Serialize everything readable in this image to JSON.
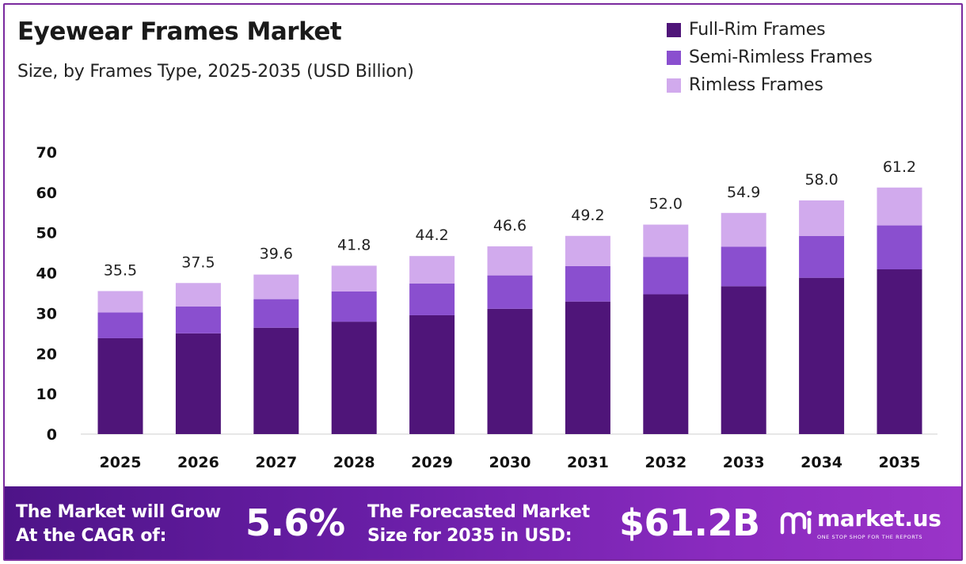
{
  "title": "Eyewear Frames Market",
  "subtitle": "Size, by Frames Type, 2025-2035 (USD Billion)",
  "colors": {
    "full_rim": "#4f1579",
    "semi_rimless": "#8a4fcf",
    "rimless": "#d1aaed",
    "accent": "#7a2a9e"
  },
  "chart_data": {
    "type": "bar",
    "stacked": true,
    "categories": [
      "2025",
      "2026",
      "2027",
      "2028",
      "2029",
      "2030",
      "2031",
      "2032",
      "2033",
      "2034",
      "2035"
    ],
    "series": [
      {
        "name": "Full-Rim Frames",
        "values": [
          23.8,
          25.0,
          26.4,
          27.9,
          29.5,
          31.1,
          32.9,
          34.7,
          36.7,
          38.8,
          40.9
        ]
      },
      {
        "name": "Semi-Rimless Frames",
        "values": [
          6.4,
          6.7,
          7.1,
          7.5,
          7.9,
          8.3,
          8.8,
          9.3,
          9.8,
          10.4,
          10.9
        ]
      },
      {
        "name": "Rimless Frames",
        "values": [
          5.3,
          5.8,
          6.1,
          6.4,
          6.8,
          7.2,
          7.5,
          8.0,
          8.4,
          8.8,
          9.4
        ]
      }
    ],
    "totals": [
      "35.5",
      "37.5",
      "39.6",
      "41.8",
      "44.2",
      "46.6",
      "49.2",
      "52.0",
      "54.9",
      "58.0",
      "61.2"
    ],
    "yticks": [
      "0",
      "10",
      "20",
      "30",
      "40",
      "50",
      "60",
      "70"
    ],
    "ylim": [
      0,
      70
    ],
    "grid": false,
    "legend_position": "top-right"
  },
  "footer": {
    "cagr_text_line1": "The Market will Grow",
    "cagr_text_line2": "At the CAGR of:",
    "cagr_value": "5.6%",
    "forecast_text_line1": "The Forecasted Market",
    "forecast_text_line2": "Size for 2035 in USD:",
    "forecast_value": "$61.2B",
    "brand_name": "market.us",
    "brand_tagline": "ONE STOP SHOP FOR THE REPORTS"
  }
}
